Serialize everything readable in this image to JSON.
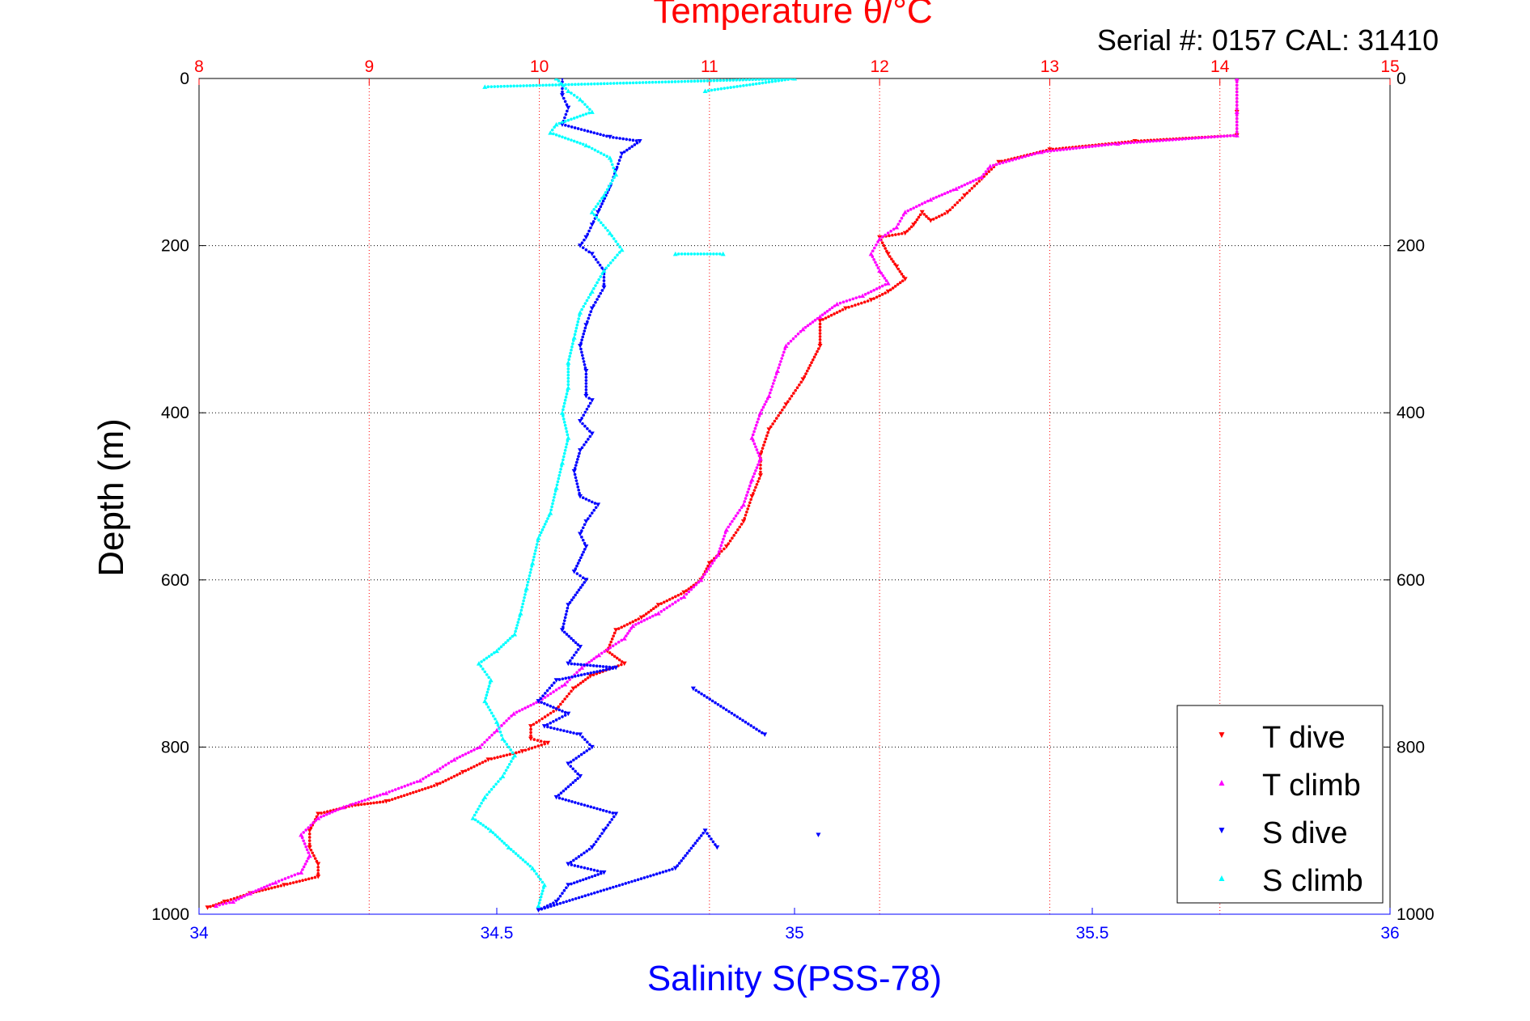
{
  "chart_data": {
    "type": "scatter",
    "title": "Temperature θ/°C",
    "subtitle": "Serial #: 0157  CAL: 31410",
    "ylabel": "Depth (m)",
    "xlabel": "Salinity S(PSS-78)",
    "x_top": {
      "label": "Temperature θ/°C",
      "range": [
        8,
        15
      ],
      "ticks": [
        "8",
        "9",
        "10",
        "11",
        "12",
        "13",
        "14",
        "15"
      ],
      "color": "#ff0000"
    },
    "x_bottom": {
      "label": "Salinity S(PSS-78)",
      "range": [
        34,
        36
      ],
      "ticks": [
        "34",
        "34.5",
        "35",
        "35.5",
        "36"
      ],
      "color": "#0000ff"
    },
    "y": {
      "range": [
        0,
        1000
      ],
      "reversed": true,
      "ticks": [
        "0",
        "200",
        "400",
        "600",
        "800",
        "1000"
      ]
    },
    "grid": true,
    "legend_position": "bottom-right",
    "series": [
      {
        "name": "T dive",
        "axis": "temperature",
        "color": "#ff0000",
        "marker": "triangle-down",
        "points": [
          [
            14.1,
            0
          ],
          [
            14.1,
            40
          ],
          [
            14.1,
            68
          ],
          [
            13.5,
            75
          ],
          [
            13.0,
            85
          ],
          [
            12.7,
            100
          ],
          [
            12.6,
            120
          ],
          [
            12.5,
            140
          ],
          [
            12.4,
            160
          ],
          [
            12.3,
            170
          ],
          [
            12.25,
            160
          ],
          [
            12.2,
            175
          ],
          [
            12.15,
            185
          ],
          [
            12.0,
            190
          ],
          [
            12.05,
            210
          ],
          [
            12.1,
            225
          ],
          [
            12.15,
            240
          ],
          [
            12.05,
            255
          ],
          [
            11.95,
            265
          ],
          [
            11.8,
            275
          ],
          [
            11.65,
            290
          ],
          [
            11.65,
            320
          ],
          [
            11.55,
            360
          ],
          [
            11.45,
            390
          ],
          [
            11.35,
            420
          ],
          [
            11.3,
            450
          ],
          [
            11.3,
            475
          ],
          [
            11.25,
            500
          ],
          [
            11.2,
            530
          ],
          [
            11.1,
            560
          ],
          [
            11.0,
            580
          ],
          [
            10.95,
            600
          ],
          [
            10.85,
            615
          ],
          [
            10.7,
            630
          ],
          [
            10.6,
            645
          ],
          [
            10.45,
            660
          ],
          [
            10.4,
            685
          ],
          [
            10.5,
            700
          ],
          [
            10.3,
            715
          ],
          [
            10.2,
            730
          ],
          [
            10.1,
            755
          ],
          [
            9.95,
            775
          ],
          [
            9.95,
            790
          ],
          [
            10.05,
            795
          ],
          [
            9.9,
            805
          ],
          [
            9.7,
            815
          ],
          [
            9.55,
            830
          ],
          [
            9.4,
            845
          ],
          [
            9.1,
            865
          ],
          [
            8.9,
            870
          ],
          [
            8.7,
            880
          ],
          [
            8.65,
            900
          ],
          [
            8.65,
            920
          ],
          [
            8.7,
            940
          ],
          [
            8.7,
            955
          ],
          [
            8.5,
            965
          ],
          [
            8.3,
            975
          ],
          [
            8.15,
            985
          ],
          [
            8.05,
            992
          ]
        ]
      },
      {
        "name": "T climb",
        "axis": "temperature",
        "color": "#ff00ff",
        "marker": "triangle-up",
        "points": [
          [
            14.1,
            0
          ],
          [
            14.1,
            40
          ],
          [
            14.1,
            68
          ],
          [
            13.4,
            78
          ],
          [
            12.95,
            88
          ],
          [
            12.65,
            105
          ],
          [
            12.6,
            118
          ],
          [
            12.45,
            132
          ],
          [
            12.3,
            145
          ],
          [
            12.15,
            160
          ],
          [
            12.1,
            178
          ],
          [
            12.0,
            192
          ],
          [
            11.95,
            210
          ],
          [
            12.0,
            230
          ],
          [
            12.05,
            245
          ],
          [
            11.9,
            260
          ],
          [
            11.75,
            270
          ],
          [
            11.65,
            285
          ],
          [
            11.55,
            300
          ],
          [
            11.45,
            320
          ],
          [
            11.4,
            350
          ],
          [
            11.35,
            380
          ],
          [
            11.3,
            400
          ],
          [
            11.25,
            430
          ],
          [
            11.3,
            455
          ],
          [
            11.25,
            480
          ],
          [
            11.2,
            510
          ],
          [
            11.1,
            540
          ],
          [
            11.05,
            570
          ],
          [
            10.95,
            600
          ],
          [
            10.85,
            620
          ],
          [
            10.7,
            640
          ],
          [
            10.55,
            655
          ],
          [
            10.5,
            670
          ],
          [
            10.35,
            690
          ],
          [
            10.25,
            705
          ],
          [
            10.15,
            725
          ],
          [
            10.0,
            745
          ],
          [
            9.85,
            760
          ],
          [
            9.75,
            780
          ],
          [
            9.65,
            800
          ],
          [
            9.5,
            815
          ],
          [
            9.4,
            828
          ],
          [
            9.3,
            840
          ],
          [
            9.1,
            855
          ],
          [
            8.85,
            872
          ],
          [
            8.7,
            885
          ],
          [
            8.6,
            905
          ],
          [
            8.65,
            930
          ],
          [
            8.6,
            950
          ],
          [
            8.45,
            962
          ],
          [
            8.3,
            975
          ],
          [
            8.2,
            985
          ],
          [
            8.1,
            990
          ]
        ]
      },
      {
        "name": "S dive",
        "axis": "salinity",
        "color": "#0000ff",
        "marker": "triangle-down",
        "points": [
          [
            34.61,
            0
          ],
          [
            34.61,
            20
          ],
          [
            34.62,
            35
          ],
          [
            34.61,
            55
          ],
          [
            34.69,
            70
          ],
          [
            34.74,
            75
          ],
          [
            34.71,
            90
          ],
          [
            34.7,
            110
          ],
          [
            34.69,
            130
          ],
          [
            34.67,
            160
          ],
          [
            34.66,
            175
          ],
          [
            34.65,
            190
          ],
          [
            34.64,
            200
          ],
          [
            34.66,
            210
          ],
          [
            34.68,
            230
          ],
          [
            34.68,
            250
          ],
          [
            34.66,
            275
          ],
          [
            34.65,
            295
          ],
          [
            34.64,
            320
          ],
          [
            34.65,
            350
          ],
          [
            34.65,
            380
          ],
          [
            34.66,
            385
          ],
          [
            34.64,
            410
          ],
          [
            34.66,
            425
          ],
          [
            34.64,
            445
          ],
          [
            34.63,
            470
          ],
          [
            34.64,
            500
          ],
          [
            34.67,
            510
          ],
          [
            34.65,
            530
          ],
          [
            34.64,
            545
          ],
          [
            34.65,
            560
          ],
          [
            34.63,
            590
          ],
          [
            34.65,
            600
          ],
          [
            34.62,
            630
          ],
          [
            34.61,
            660
          ],
          [
            34.64,
            680
          ],
          [
            34.62,
            700
          ],
          [
            34.7,
            705
          ],
          [
            34.6,
            720
          ],
          [
            34.57,
            745
          ],
          [
            34.62,
            760
          ],
          [
            34.58,
            775
          ],
          [
            34.64,
            785
          ],
          [
            34.66,
            800
          ],
          [
            34.62,
            820
          ],
          [
            34.64,
            835
          ],
          [
            34.6,
            860
          ],
          [
            34.7,
            880
          ],
          [
            34.68,
            900
          ],
          [
            34.66,
            920
          ],
          [
            34.62,
            940
          ],
          [
            34.68,
            950
          ],
          [
            34.62,
            965
          ],
          [
            34.6,
            985
          ],
          [
            34.57,
            995
          ],
          [
            34.8,
            945
          ],
          [
            34.85,
            900
          ],
          [
            34.87,
            920
          ],
          [
            34.83,
            730
          ],
          [
            34.95,
            785
          ],
          [
            35.04,
            905
          ]
        ]
      },
      {
        "name": "S climb",
        "axis": "salinity",
        "color": "#00ffff",
        "marker": "triangle-up",
        "points": [
          [
            34.6,
            0
          ],
          [
            34.62,
            15
          ],
          [
            34.64,
            25
          ],
          [
            34.66,
            40
          ],
          [
            34.6,
            55
          ],
          [
            34.59,
            65
          ],
          [
            34.65,
            80
          ],
          [
            34.69,
            95
          ],
          [
            34.7,
            115
          ],
          [
            34.68,
            140
          ],
          [
            34.66,
            160
          ],
          [
            34.69,
            185
          ],
          [
            34.71,
            205
          ],
          [
            34.68,
            230
          ],
          [
            34.66,
            255
          ],
          [
            34.64,
            280
          ],
          [
            34.63,
            310
          ],
          [
            34.62,
            340
          ],
          [
            34.62,
            370
          ],
          [
            34.61,
            400
          ],
          [
            34.62,
            430
          ],
          [
            34.61,
            460
          ],
          [
            34.6,
            490
          ],
          [
            34.59,
            520
          ],
          [
            34.57,
            550
          ],
          [
            34.56,
            580
          ],
          [
            34.55,
            610
          ],
          [
            34.54,
            640
          ],
          [
            34.53,
            665
          ],
          [
            34.5,
            685
          ],
          [
            34.47,
            700
          ],
          [
            34.49,
            720
          ],
          [
            34.48,
            745
          ],
          [
            34.5,
            770
          ],
          [
            34.51,
            790
          ],
          [
            34.53,
            810
          ],
          [
            34.51,
            835
          ],
          [
            34.48,
            860
          ],
          [
            34.46,
            885
          ],
          [
            34.49,
            900
          ],
          [
            34.52,
            920
          ],
          [
            34.56,
            945
          ],
          [
            34.58,
            965
          ],
          [
            34.57,
            990
          ],
          [
            34.8,
            210
          ],
          [
            34.88,
            210
          ],
          [
            34.48,
            10
          ],
          [
            35.0,
            0
          ],
          [
            34.85,
            15
          ]
        ]
      }
    ]
  }
}
